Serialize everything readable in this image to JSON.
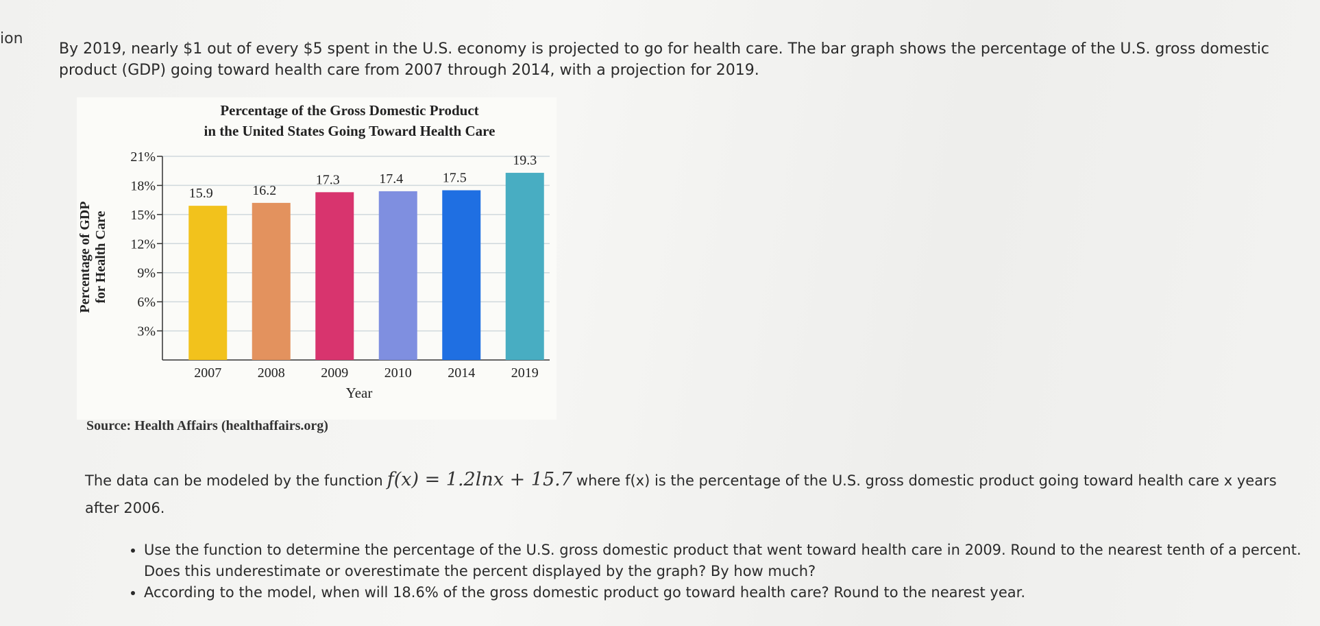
{
  "stub": "ion",
  "intro": "By 2019, nearly $1 out of every $5 spent in the U.S. economy is projected to go for health care. The bar graph shows the percentage of the U.S. gross domestic product (GDP) going toward health care from 2007 through 2014, with a projection for 2019.",
  "chart_data": {
    "type": "bar",
    "title": [
      "Percentage of the Gross Domestic Product",
      "in the United States Going Toward Health Care"
    ],
    "y_label": [
      "Percentage of GDP",
      "for Health Care"
    ],
    "x_label": "Year",
    "categories": [
      "2007",
      "2008",
      "2009",
      "2010",
      "2014",
      "2019"
    ],
    "values": [
      15.9,
      16.2,
      17.3,
      17.4,
      17.5,
      19.3
    ],
    "colors": [
      "#f2c21c",
      "#e3925e",
      "#d8346e",
      "#7f8fe0",
      "#1f6fe2",
      "#48adc2"
    ],
    "ylim": [
      0,
      21
    ],
    "yticks": [
      {
        "value": 3,
        "label": "3%"
      },
      {
        "value": 6,
        "label": "6%"
      },
      {
        "value": 9,
        "label": "9%"
      },
      {
        "value": 12,
        "label": "12%"
      },
      {
        "value": 15,
        "label": "15%"
      },
      {
        "value": 18,
        "label": "18%"
      },
      {
        "value": 21,
        "label": "21%"
      }
    ],
    "grid": true
  },
  "source": "Source: Health Affairs (healthaffairs.org)",
  "model": {
    "before": "The data can be modeled by the function",
    "formula": "f(x) = 1.2lnx + 15.7",
    "after": "where f(x) is the percentage of the U.S. gross domestic product going toward health care x years after 2006."
  },
  "bullets": [
    "Use the function to determine the percentage of the U.S. gross domestic product that went toward health care in 2009. Round to the nearest tenth of a percent. Does this underestimate or overestimate the percent displayed by the graph? By how much?",
    "According to the model, when will 18.6% of the gross domestic product go toward health care? Round to the nearest year."
  ]
}
